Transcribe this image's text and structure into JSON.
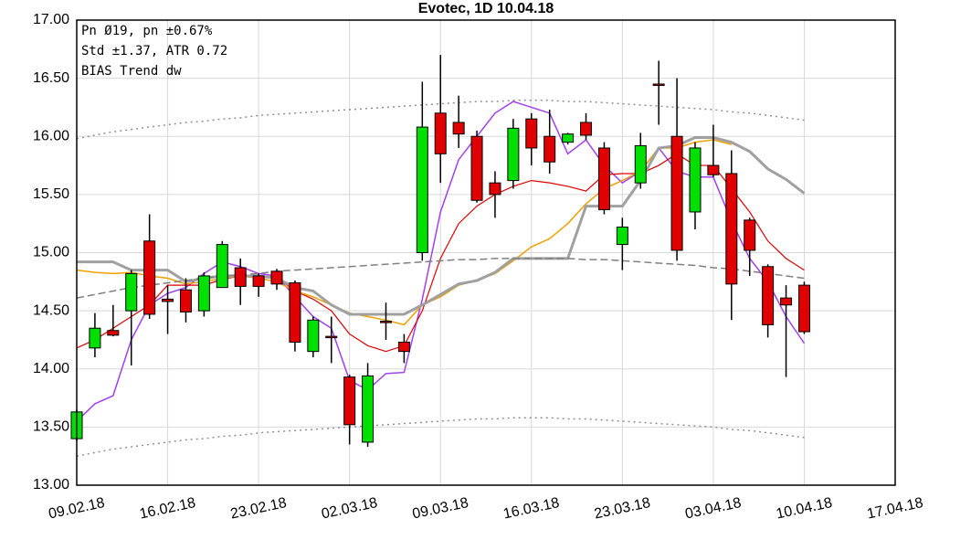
{
  "chart_data": {
    "type": "candlestick",
    "title": "Evotec, 1D 10.04.18",
    "annotations": [
      "Pn  Ø19, pn ±0.67%",
      "Std ±1.37, ATR 0.72",
      "BIAS Trend dw"
    ],
    "up_color": "#00e000",
    "down_color": "#e00000",
    "open": [
      13.4,
      14.18,
      14.33,
      14.5,
      15.1,
      14.6,
      14.68,
      14.5,
      14.7,
      14.87,
      14.8,
      14.84,
      14.74,
      14.15,
      14.28,
      13.93,
      13.37,
      14.41,
      14.23,
      15.0,
      16.2,
      16.12,
      16.0,
      15.6,
      15.62,
      16.15,
      16.0,
      15.95,
      16.12,
      15.9,
      15.07,
      15.6,
      16.45,
      16.0,
      15.35,
      15.75,
      15.68,
      15.28,
      14.88,
      14.61,
      14.72
    ],
    "high": [
      13.65,
      14.48,
      14.55,
      14.85,
      15.33,
      14.72,
      14.78,
      14.83,
      15.1,
      14.95,
      14.82,
      14.86,
      14.76,
      14.45,
      14.45,
      13.95,
      14.05,
      14.57,
      14.3,
      16.47,
      16.7,
      16.35,
      16.05,
      15.7,
      16.15,
      16.2,
      16.23,
      16.03,
      16.2,
      15.95,
      15.3,
      16.03,
      16.65,
      16.5,
      15.95,
      16.1,
      15.88,
      15.3,
      14.9,
      14.72,
      14.75
    ],
    "low": [
      13.38,
      14.1,
      14.28,
      14.03,
      14.43,
      14.3,
      14.4,
      14.45,
      14.7,
      14.55,
      14.62,
      14.68,
      14.15,
      14.1,
      14.05,
      13.35,
      13.33,
      14.25,
      14.05,
      14.93,
      15.6,
      15.9,
      15.43,
      15.3,
      15.55,
      15.75,
      15.68,
      15.93,
      15.97,
      15.33,
      14.85,
      15.55,
      16.1,
      14.93,
      15.2,
      15.65,
      14.42,
      14.8,
      14.27,
      13.93,
      14.3
    ],
    "close": [
      13.63,
      14.35,
      14.29,
      14.82,
      14.47,
      14.58,
      14.49,
      14.8,
      15.07,
      14.71,
      14.71,
      14.73,
      14.23,
      14.42,
      14.27,
      13.52,
      13.94,
      14.4,
      14.15,
      16.08,
      15.85,
      16.02,
      15.45,
      15.5,
      16.07,
      15.9,
      15.78,
      16.02,
      16.01,
      15.37,
      15.22,
      15.92,
      16.44,
      15.02,
      15.9,
      15.67,
      14.73,
      15.02,
      14.38,
      14.55,
      14.32
    ],
    "lines": [
      {
        "color": "#a040f0",
        "style": "solid",
        "width": 1.5,
        "values": [
          13.55,
          13.7,
          13.77,
          14.25,
          14.55,
          14.65,
          14.7,
          14.82,
          14.92,
          14.88,
          14.82,
          14.8,
          14.62,
          14.45,
          14.35,
          13.9,
          13.82,
          13.96,
          13.97,
          14.6,
          15.35,
          15.8,
          16.0,
          16.2,
          16.3,
          16.25,
          16.2,
          15.85,
          15.97,
          15.75,
          15.6,
          15.7,
          15.9,
          15.7,
          15.65,
          15.65,
          15.27,
          14.95,
          14.75,
          14.45,
          14.22
        ]
      },
      {
        "color": "#e00000",
        "style": "solid",
        "width": 1.2,
        "values": [
          14.18,
          14.25,
          14.35,
          14.45,
          14.55,
          14.72,
          14.72,
          14.72,
          14.77,
          14.8,
          14.8,
          14.79,
          14.67,
          14.6,
          14.5,
          14.3,
          14.2,
          14.15,
          14.2,
          14.5,
          14.95,
          15.25,
          15.4,
          15.5,
          15.57,
          15.62,
          15.6,
          15.57,
          15.53,
          15.67,
          15.68,
          15.68,
          15.75,
          15.85,
          15.75,
          15.75,
          15.55,
          15.35,
          15.1,
          14.95,
          14.85
        ]
      },
      {
        "color": "#f0a000",
        "style": "solid",
        "width": 1.5,
        "values": [
          14.85,
          14.83,
          14.82,
          14.83,
          14.8,
          14.78,
          14.73,
          14.75,
          14.78,
          14.8,
          14.78,
          14.75,
          14.67,
          14.62,
          14.55,
          14.48,
          14.45,
          14.42,
          14.38,
          14.55,
          14.62,
          14.72,
          14.76,
          14.82,
          14.93,
          15.05,
          15.12,
          15.25,
          15.42,
          15.55,
          15.62,
          15.7,
          15.9,
          15.9,
          15.95,
          15.97,
          15.93,
          null,
          null,
          null,
          null
        ]
      },
      {
        "color": "#a0a0a0",
        "style": "solid",
        "width": 3,
        "values": [
          14.92,
          14.92,
          14.92,
          14.85,
          14.85,
          14.85,
          14.75,
          14.78,
          14.8,
          14.8,
          14.8,
          14.78,
          14.7,
          14.67,
          14.55,
          14.47,
          14.47,
          14.47,
          14.47,
          14.55,
          14.64,
          14.73,
          14.76,
          14.83,
          14.95,
          14.95,
          14.95,
          14.95,
          15.4,
          15.4,
          15.4,
          15.62,
          15.9,
          15.92,
          15.99,
          15.99,
          15.95,
          15.87,
          15.72,
          15.63,
          15.51
        ]
      },
      {
        "color": "#808080",
        "style": "dashed",
        "width": 1.5,
        "values": [
          14.61,
          14.64,
          14.67,
          14.7,
          14.72,
          14.74,
          14.76,
          14.78,
          14.8,
          14.81,
          14.82,
          14.84,
          14.85,
          14.86,
          14.87,
          14.88,
          14.89,
          14.9,
          14.91,
          14.92,
          14.93,
          14.94,
          14.94,
          14.95,
          14.95,
          14.95,
          14.95,
          14.95,
          14.94,
          14.94,
          14.93,
          14.92,
          14.91,
          14.9,
          14.89,
          14.87,
          14.86,
          14.84,
          14.82,
          14.8,
          14.78
        ]
      },
      {
        "color": "#909090",
        "style": "dotted",
        "width": 1.5,
        "values": [
          15.98,
          16.01,
          16.04,
          16.06,
          16.08,
          16.1,
          16.12,
          16.13,
          16.15,
          16.16,
          16.18,
          16.19,
          16.2,
          16.21,
          16.22,
          16.23,
          16.24,
          16.25,
          16.26,
          16.27,
          16.28,
          16.29,
          16.3,
          16.3,
          16.31,
          16.31,
          16.31,
          16.3,
          16.3,
          16.29,
          16.28,
          16.27,
          16.26,
          16.25,
          16.24,
          16.23,
          16.21,
          16.2,
          16.18,
          16.16,
          16.14
        ]
      },
      {
        "color": "#909090",
        "style": "dotted",
        "width": 1.5,
        "values": [
          13.25,
          13.28,
          13.31,
          13.33,
          13.35,
          13.37,
          13.39,
          13.4,
          13.42,
          13.43,
          13.45,
          13.46,
          13.47,
          13.48,
          13.49,
          13.5,
          13.51,
          13.52,
          13.53,
          13.54,
          13.55,
          13.56,
          13.57,
          13.57,
          13.58,
          13.58,
          13.58,
          13.57,
          13.57,
          13.56,
          13.55,
          13.54,
          13.53,
          13.52,
          13.51,
          13.5,
          13.48,
          13.47,
          13.45,
          13.43,
          13.41
        ]
      }
    ],
    "xlim": [
      0,
      45
    ],
    "xticks": [
      {
        "value": 0,
        "label": "09.02.18"
      },
      {
        "value": 5,
        "label": "16.02.18"
      },
      {
        "value": 10,
        "label": "23.02.18"
      },
      {
        "value": 15,
        "label": "02.03.18"
      },
      {
        "value": 20,
        "label": "09.03.18"
      },
      {
        "value": 25,
        "label": "16.03.18"
      },
      {
        "value": 30,
        "label": "23.03.18"
      },
      {
        "value": 35,
        "label": "03.04.18"
      },
      {
        "value": 40,
        "label": "10.04.18"
      },
      {
        "value": 45,
        "label": "17.04.18"
      }
    ],
    "ylim": [
      13,
      17
    ],
    "yticks": [
      {
        "value": 13,
        "label": "13.00"
      },
      {
        "value": 13.5,
        "label": "13.50"
      },
      {
        "value": 14,
        "label": "14.00"
      },
      {
        "value": 14.5,
        "label": "14.50"
      },
      {
        "value": 15,
        "label": "15.00"
      },
      {
        "value": 15.5,
        "label": "15.50"
      },
      {
        "value": 16,
        "label": "16.00"
      },
      {
        "value": 16.5,
        "label": "16.50"
      },
      {
        "value": 17,
        "label": "17.00"
      }
    ],
    "grid": true
  }
}
